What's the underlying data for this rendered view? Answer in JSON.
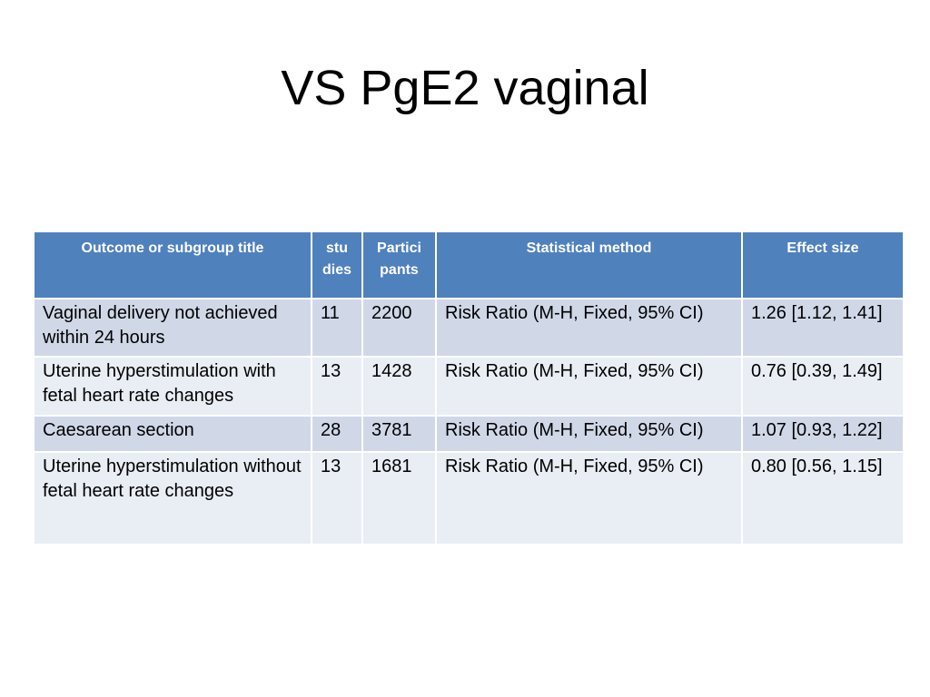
{
  "slide": {
    "title": "VS PgE2 vaginal"
  },
  "table": {
    "headers": [
      "Outcome or subgroup title",
      "stu dies",
      "Partici pants",
      "Statistical method",
      "Effect size"
    ],
    "rows": [
      [
        "Vaginal delivery not achieved within 24 hours",
        "11",
        "2200",
        "Risk Ratio (M-H, Fixed, 95% CI)",
        "1.26 [1.12, 1.41]"
      ],
      [
        "Uterine hyperstimulation with fetal heart rate changes",
        "13",
        "1428",
        "Risk Ratio (M-H, Fixed, 95% CI)",
        "0.76 [0.39, 1.49]"
      ],
      [
        "Caesarean section",
        "28",
        "3781",
        "Risk Ratio (M-H, Fixed, 95% CI)",
        "1.07 [0.93, 1.22]"
      ],
      [
        "Uterine hyperstimulation without fetal heart rate changes",
        "13",
        "1681",
        "Risk Ratio (M-H, Fixed, 95% CI)",
        "0.80 [0.56, 1.15]"
      ]
    ]
  },
  "colors": {
    "header_bg": "#4f81bd",
    "row_odd_bg": "#d0d8e8",
    "row_even_bg": "#e9edf4"
  }
}
